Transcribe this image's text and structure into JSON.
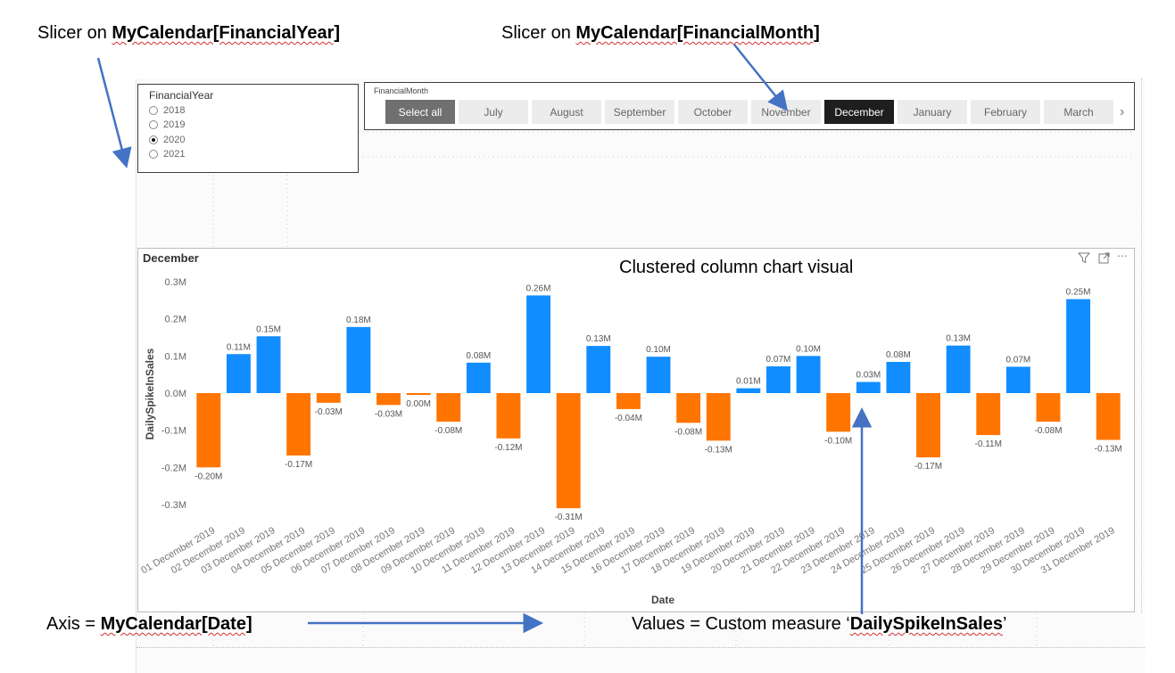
{
  "annotations": {
    "fy_prefix": "Slicer on ",
    "fy_bold": "MyCalendar[FinancialYear]",
    "fm_prefix": "Slicer on ",
    "fm_bold": "MyCalendar[FinancialMonth]",
    "chart_type_label": "Clustered column chart visual",
    "axis_prefix": "Axis = ",
    "axis_bold": "MyCalendar[Date]",
    "values_prefix": "Values = Custom measure ‘",
    "values_bold": "DailySpikeInSales",
    "values_suffix": "’"
  },
  "year_slicer": {
    "title": "FinancialYear",
    "options": [
      "2018",
      "2019",
      "2020",
      "2021"
    ],
    "selected": "2020"
  },
  "month_slicer": {
    "title": "FinancialMonth",
    "tiles": [
      "Select all",
      "July",
      "August",
      "September",
      "October",
      "November",
      "December",
      "January",
      "February",
      "March"
    ],
    "selected": "December",
    "next_icon": "chevron-right-icon"
  },
  "chart_header": {
    "title": "December",
    "icons": [
      "filter-icon",
      "focus-mode-icon",
      "more-options-icon"
    ]
  },
  "colors": {
    "positive": "#118dff",
    "negative": "#ff7500",
    "arrow": "#4472c4"
  },
  "chart_data": {
    "type": "bar",
    "xlabel": "Date",
    "ylabel": "DailySpikeInSales",
    "ylim": [
      -0.3,
      0.3
    ],
    "yticks": [
      "-0.3M",
      "-0.2M",
      "-0.1M",
      "0.0M",
      "0.1M",
      "0.2M",
      "0.3M"
    ],
    "grid": false,
    "categories": [
      "01 December 2019",
      "02 December 2019",
      "03 December 2019",
      "04 December 2019",
      "05 December 2019",
      "06 December 2019",
      "07 December 2019",
      "08 December 2019",
      "09 December 2019",
      "10 December 2019",
      "11 December 2019",
      "12 December 2019",
      "13 December 2019",
      "14 December 2019",
      "15 December 2019",
      "16 December 2019",
      "17 December 2019",
      "18 December 2019",
      "19 December 2019",
      "20 December 2019",
      "21 December 2019",
      "22 December 2019",
      "23 December 2019",
      "24 December 2019",
      "25 December 2019",
      "26 December 2019",
      "27 December 2019",
      "28 December 2019",
      "29 December 2019",
      "30 December 2019",
      "31 December 2019"
    ],
    "values": [
      -0.2,
      0.105,
      0.153,
      -0.168,
      -0.026,
      0.178,
      -0.032,
      -0.005,
      -0.077,
      0.082,
      -0.122,
      0.263,
      -0.31,
      0.127,
      -0.043,
      0.098,
      -0.08,
      -0.128,
      0.013,
      0.072,
      0.1,
      -0.104,
      0.03,
      0.084,
      -0.173,
      0.128,
      -0.113,
      0.071,
      -0.077,
      0.253,
      -0.126
    ],
    "labels": [
      "-0.20M",
      "0.11M",
      "0.15M",
      "-0.17M",
      "-0.03M",
      "0.18M",
      "-0.03M",
      "0.00M",
      "-0.08M",
      "0.08M",
      "-0.12M",
      "0.26M",
      "-0.31M",
      "0.13M",
      "-0.04M",
      "0.10M",
      "-0.08M",
      "-0.13M",
      "0.01M",
      "0.07M",
      "0.10M",
      "-0.10M",
      "0.03M",
      "0.08M",
      "-0.17M",
      "0.13M",
      "-0.11M",
      "0.07M",
      "-0.08M",
      "0.25M",
      "-0.13M"
    ]
  }
}
